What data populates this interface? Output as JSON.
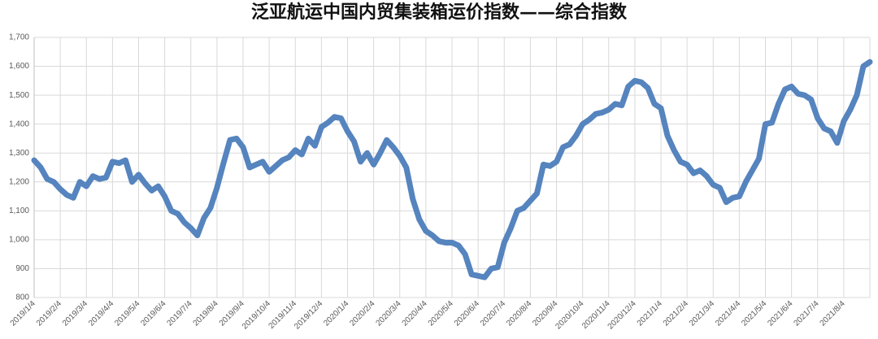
{
  "chart_data": {
    "type": "line",
    "title": "泛亚航运中国内贸集装箱运价指数——综合指数",
    "categories": [
      "2019/1/4",
      null,
      null,
      null,
      "2019/2/4",
      null,
      null,
      null,
      "2019/3/4",
      null,
      null,
      null,
      "2019/4/4",
      null,
      null,
      null,
      "2019/5/4",
      null,
      null,
      null,
      "2019/6/4",
      null,
      null,
      null,
      "2019/7/4",
      null,
      null,
      null,
      "2019/8/4",
      null,
      null,
      null,
      "2019/9/4",
      null,
      null,
      null,
      "2019/10/4",
      null,
      null,
      null,
      "2019/11/4",
      null,
      null,
      null,
      "2019/12/4",
      null,
      null,
      null,
      "2020/1/4",
      null,
      null,
      null,
      "2020/2/4",
      null,
      null,
      null,
      "2020/3/4",
      null,
      null,
      null,
      "2020/4/4",
      null,
      null,
      null,
      "2020/5/4",
      null,
      null,
      null,
      "2020/6/4",
      null,
      null,
      null,
      "2020/7/4",
      null,
      null,
      null,
      "2020/8/4",
      null,
      null,
      null,
      "2020/9/4",
      null,
      null,
      null,
      "2020/10/4",
      null,
      null,
      null,
      "2020/11/4",
      null,
      null,
      null,
      "2020/12/4",
      null,
      null,
      null,
      "2021/1/4",
      null,
      null,
      null,
      "2021/2/4",
      null,
      null,
      null,
      "2021/3/4",
      null,
      null,
      null,
      "2021/4/4",
      null,
      null,
      null,
      "2021/5/4",
      null,
      null,
      null,
      "2021/6/4",
      null,
      null,
      null,
      "2021/7/4",
      null,
      null,
      null,
      "2021/8/4",
      null,
      null,
      null,
      null
    ],
    "values": [
      1275,
      1250,
      1210,
      1200,
      1175,
      1155,
      1145,
      1200,
      1185,
      1220,
      1210,
      1215,
      1270,
      1265,
      1275,
      1200,
      1225,
      1195,
      1170,
      1185,
      1150,
      1100,
      1090,
      1060,
      1040,
      1015,
      1075,
      1110,
      1180,
      1265,
      1345,
      1350,
      1320,
      1250,
      1260,
      1270,
      1235,
      1255,
      1275,
      1285,
      1310,
      1295,
      1350,
      1325,
      1390,
      1405,
      1425,
      1420,
      1375,
      1340,
      1270,
      1300,
      1260,
      1300,
      1345,
      1320,
      1290,
      1250,
      1140,
      1070,
      1030,
      1015,
      995,
      990,
      990,
      980,
      950,
      880,
      875,
      870,
      900,
      905,
      990,
      1040,
      1100,
      1110,
      1135,
      1160,
      1260,
      1255,
      1270,
      1320,
      1330,
      1360,
      1400,
      1415,
      1435,
      1440,
      1450,
      1470,
      1465,
      1530,
      1550,
      1545,
      1525,
      1470,
      1455,
      1360,
      1310,
      1270,
      1260,
      1230,
      1240,
      1220,
      1190,
      1180,
      1130,
      1145,
      1150,
      1200,
      1240,
      1280,
      1400,
      1405,
      1470,
      1520,
      1530,
      1505,
      1500,
      1485,
      1420,
      1385,
      1375,
      1335,
      1410,
      1450,
      1500,
      1600,
      1615
    ],
    "color": "#5584be",
    "ylim": [
      800,
      1700
    ],
    "yticks": [
      800,
      900,
      {
        "value": 1000,
        "label": "1,000"
      },
      {
        "value": 1100,
        "label": "1,100"
      },
      {
        "value": 1200,
        "label": "1,200"
      },
      {
        "value": 1300,
        "label": "1,300"
      },
      {
        "value": 1400,
        "label": "1,400"
      },
      {
        "value": 1500,
        "label": "1,500"
      },
      {
        "value": 1600,
        "label": "1,600"
      },
      {
        "value": 1700,
        "label": "1,700"
      }
    ],
    "grid": true
  }
}
